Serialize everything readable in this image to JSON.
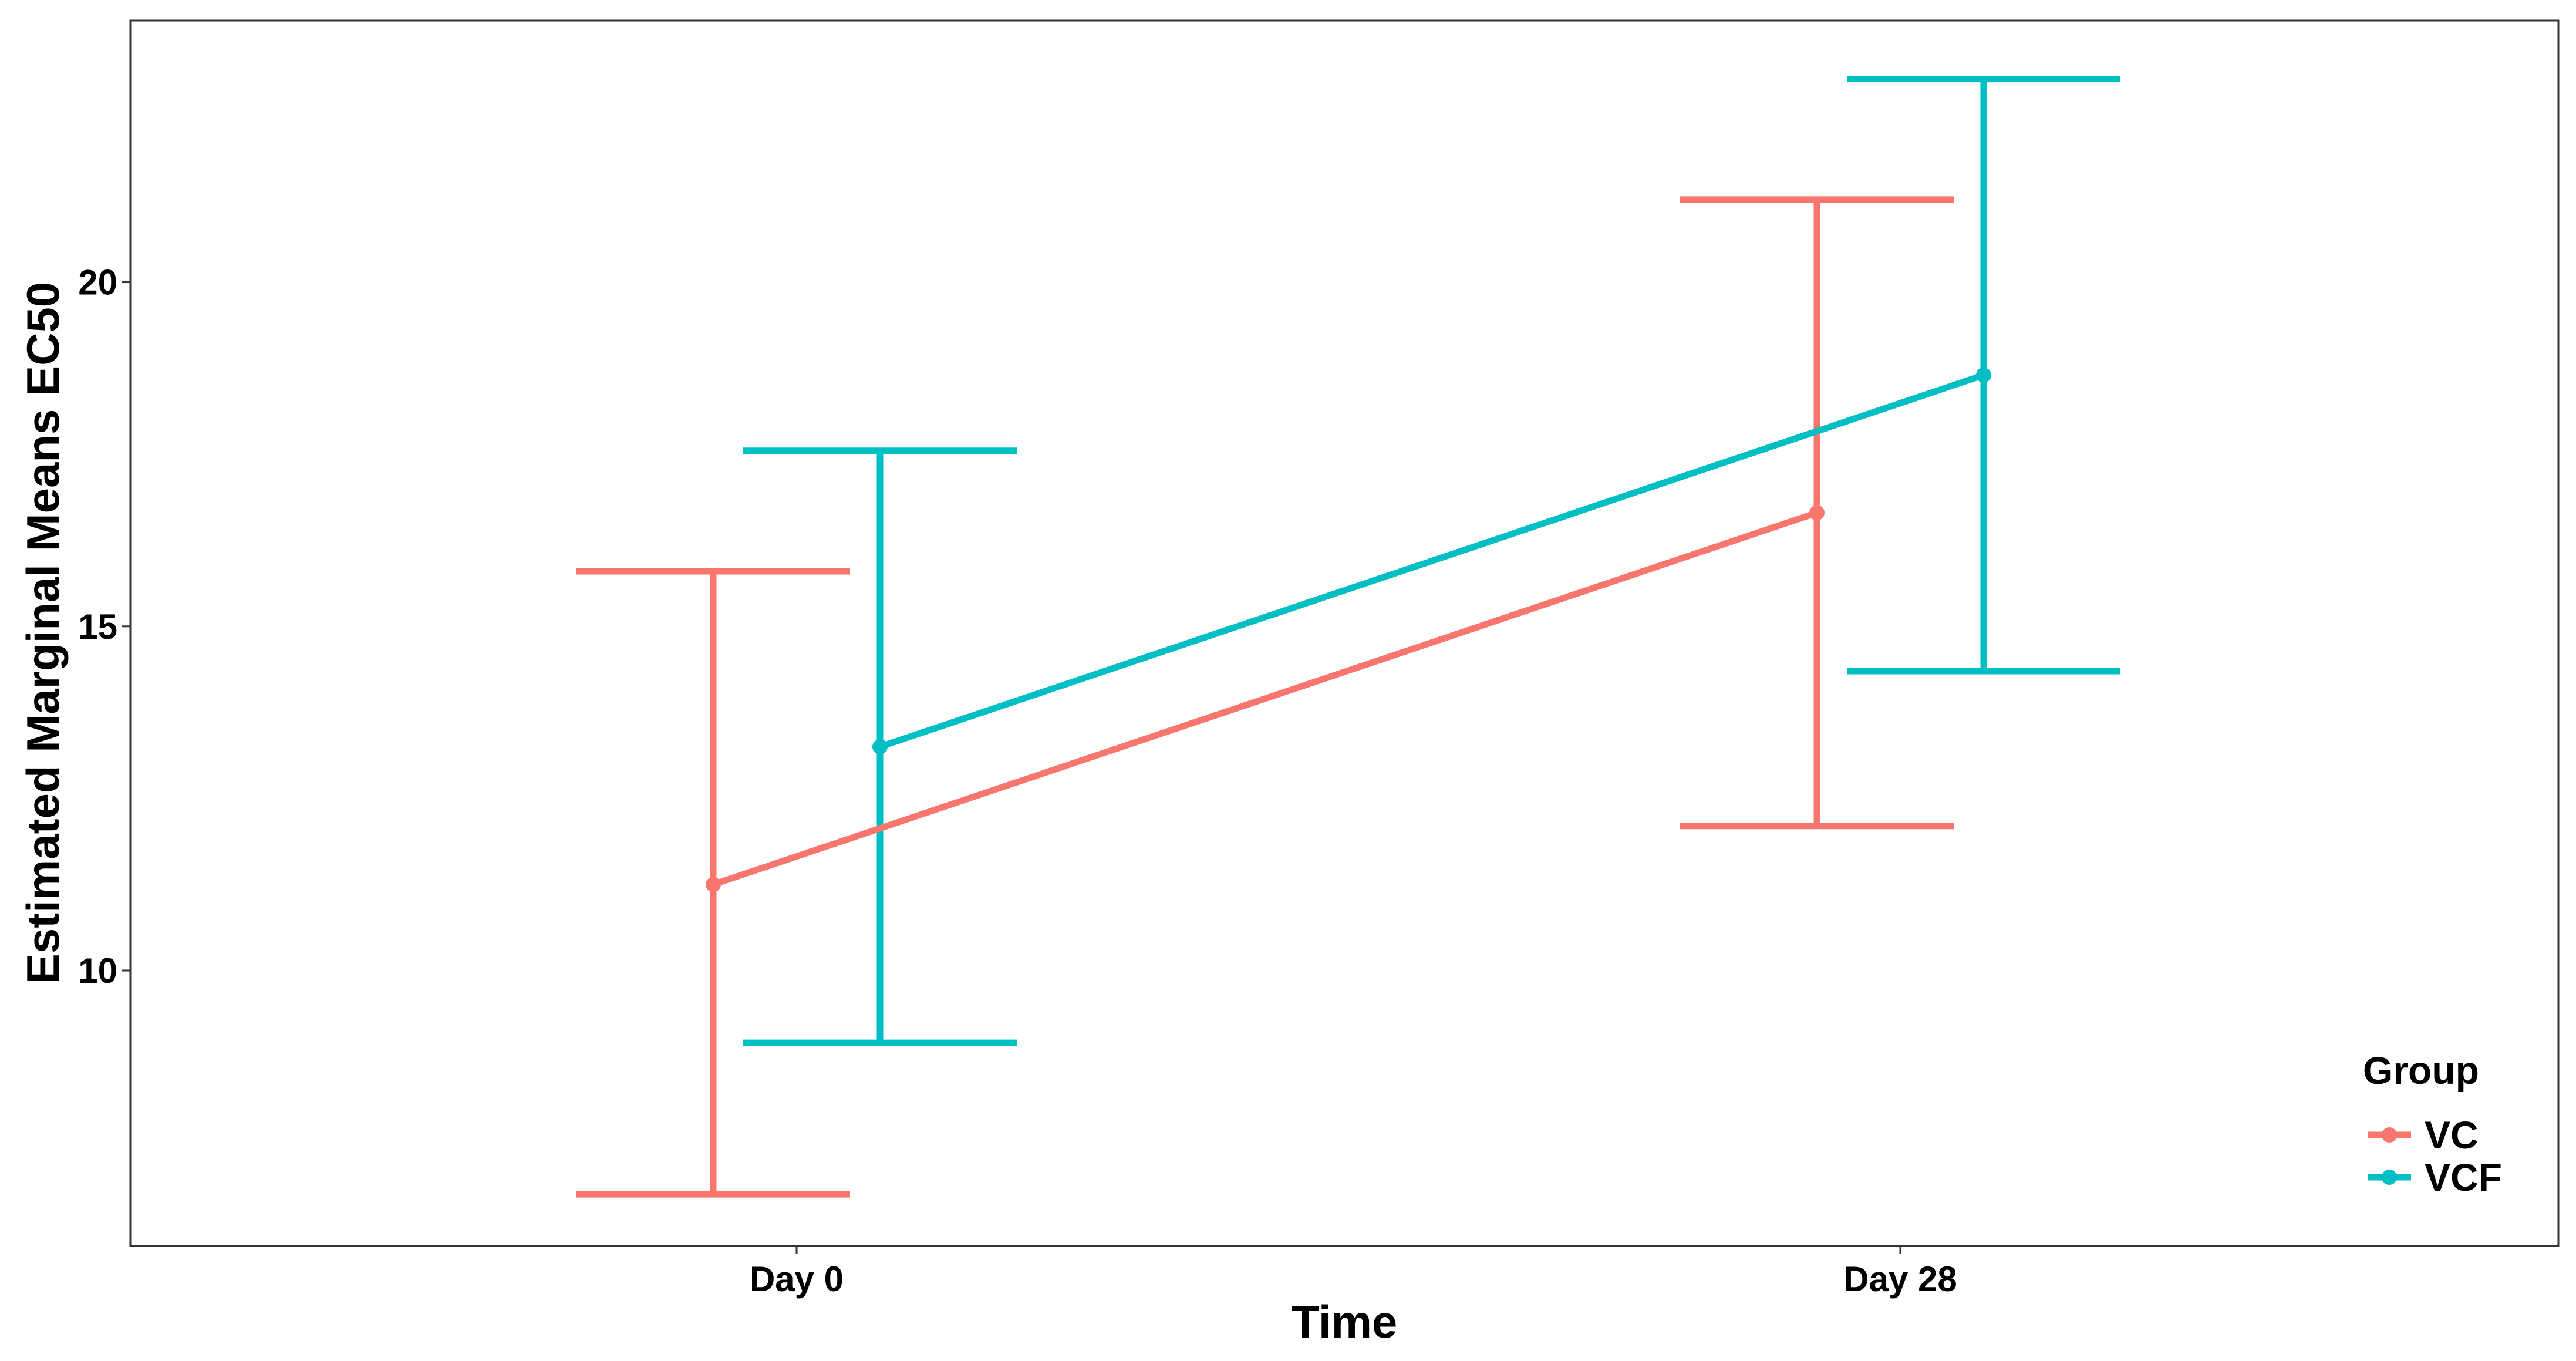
{
  "chart_data": {
    "type": "line",
    "xlabel": "Time",
    "ylabel": "Estimated Marginal Means EC50",
    "categories": [
      "Day 0",
      "Day 28"
    ],
    "ylim": [
      6.0,
      23.8
    ],
    "y_ticks": [
      10,
      15,
      20
    ],
    "grid": false,
    "legend": {
      "title": "Group",
      "position": "bottom-right"
    },
    "series": [
      {
        "name": "VC",
        "color": "#F8766D",
        "values": [
          11.25,
          16.65
        ],
        "lower": [
          6.75,
          12.1
        ],
        "upper": [
          15.8,
          21.2
        ]
      },
      {
        "name": "VCF",
        "color": "#00BFC4",
        "values": [
          13.25,
          18.65
        ],
        "lower": [
          8.95,
          14.35
        ],
        "upper": [
          17.55,
          22.95
        ]
      }
    ]
  }
}
